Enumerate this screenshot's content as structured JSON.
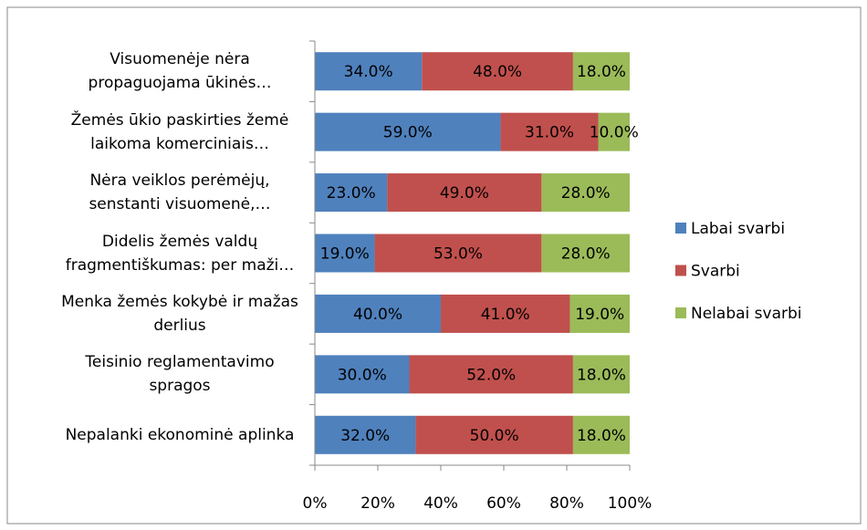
{
  "chart_data": {
    "type": "stacked_bar_horizontal",
    "categories": [
      "Visuomenėje nėra propaguojama ūkinės…",
      "Žemės ūkio paskirties žemė laikoma komerciniais…",
      "Nėra veiklos perėmėjų, senstanti visuomenė,…",
      "Didelis žemės valdų fragmentiškumas: per maži…",
      "Menka žemės kokybė ir mažas derlius",
      "Teisinio reglamentavimo spragos",
      "Nepalanki ekonominė aplinka"
    ],
    "series": [
      {
        "name": "Labai svarbi",
        "color": "#4f81bd",
        "values": [
          34,
          59,
          23,
          19,
          40,
          30,
          32
        ],
        "value_labels": [
          "34.0%",
          "59.0%",
          "23.0%",
          "19.0%",
          "40.0%",
          "30.0%",
          "32.0%"
        ]
      },
      {
        "name": "Svarbi",
        "color": "#c0504d",
        "values": [
          48,
          31,
          49,
          53,
          41,
          52,
          50
        ],
        "value_labels": [
          "48.0%",
          "31.0%",
          "49.0%",
          "53.0%",
          "41.0%",
          "52.0%",
          "50.0%"
        ]
      },
      {
        "name": "Nelabai svarbi",
        "color": "#9bbb59",
        "values": [
          18,
          10,
          28,
          28,
          19,
          18,
          18
        ],
        "value_labels": [
          "18.0%",
          "10.0%",
          "28.0%",
          "28.0%",
          "19.0%",
          "18.0%",
          "18.0%"
        ]
      }
    ],
    "xlim": [
      0,
      100
    ],
    "xticks": [
      {
        "value": 0,
        "label": "0%"
      },
      {
        "value": 20,
        "label": "20%"
      },
      {
        "value": 40,
        "label": "40%"
      },
      {
        "value": 60,
        "label": "60%"
      },
      {
        "value": 80,
        "label": "80%"
      },
      {
        "value": 100,
        "label": "100%"
      }
    ],
    "legend": "right"
  }
}
